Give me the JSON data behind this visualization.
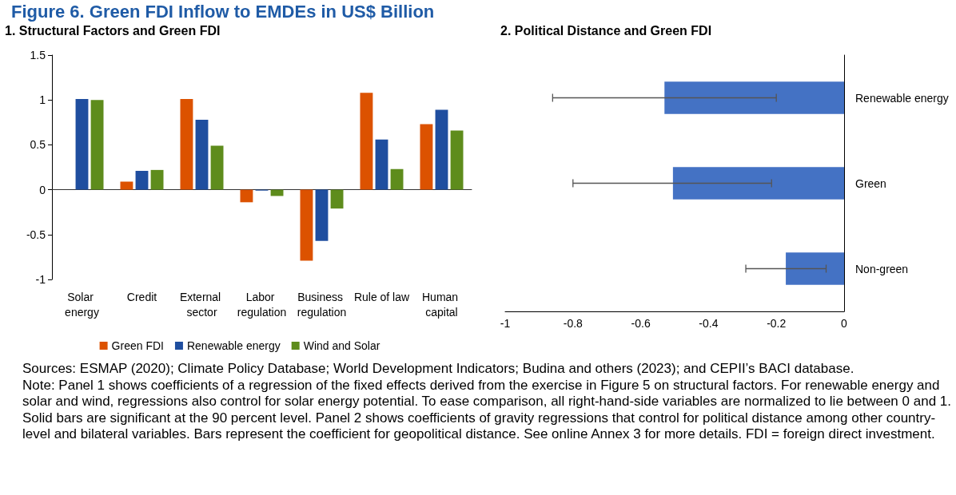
{
  "chart_data": [
    {
      "type": "bar",
      "title": "Figure 6. Green FDI Inflow to EMDEs in US$ Billion",
      "subtitle": "1. Structural Factors and Green FDI",
      "categories": [
        "Solar energy",
        "Credit",
        "External sector",
        "Labor regulation",
        "Business regulation",
        "Rule of law",
        "Human capital"
      ],
      "series": [
        {
          "name": "Green FDI",
          "color": "#dc5200",
          "values": [
            null,
            0.09,
            1.01,
            -0.14,
            -0.79,
            1.08,
            0.73
          ]
        },
        {
          "name": "Renewable energy",
          "color": "#1f4e9f",
          "values": [
            1.01,
            0.21,
            0.78,
            -0.01,
            -0.57,
            0.56,
            0.89
          ]
        },
        {
          "name": "Wind and Solar",
          "color": "#5e8c1c",
          "values": [
            1.0,
            0.22,
            0.49,
            -0.07,
            -0.21,
            0.23,
            0.66
          ]
        }
      ],
      "ylim": [
        -1,
        1.5
      ],
      "yticks": [
        -1,
        -0.5,
        0,
        0.5,
        1,
        1.5
      ],
      "legend": "bottom",
      "annotations": [
        "Sources: ESMAP (2020); Climate Policy Database; World Development Indicators; Budina and others (2023); and CEPII’s BACI database.",
        "Note: Panel 1 shows coefficients of a regression of the fixed effects derived from the exercise in Figure 5 on structural factors. For renewable energy and solar and wind, regressions also control for solar energy potential. To ease comparison, all right-hand-side variables are normalized to lie between 0 and 1. Solid bars are significant at the 90 percent level. Panel 2 shows coefficients of gravity regressions that control for political distance among other country-level and bilateral variables. Bars represent the coefficient for geopolitical distance. See online Annex 3 for more details. FDI = foreign direct investment."
      ]
    },
    {
      "type": "bar",
      "title": "2. Political Distance and Green FDI",
      "orientation": "horizontal",
      "categories": [
        "Renewable energy",
        "Green",
        "Non-green"
      ],
      "values": [
        -0.53,
        -0.505,
        -0.172
      ],
      "color": "#4472c4",
      "errors": [
        [
          -0.86,
          -0.2
        ],
        [
          -0.8,
          -0.214
        ],
        [
          -0.29,
          -0.053
        ]
      ],
      "xlim": [
        -1,
        0
      ],
      "xticks": [
        -1,
        -0.8,
        -0.6,
        -0.4,
        -0.2,
        0
      ]
    }
  ]
}
